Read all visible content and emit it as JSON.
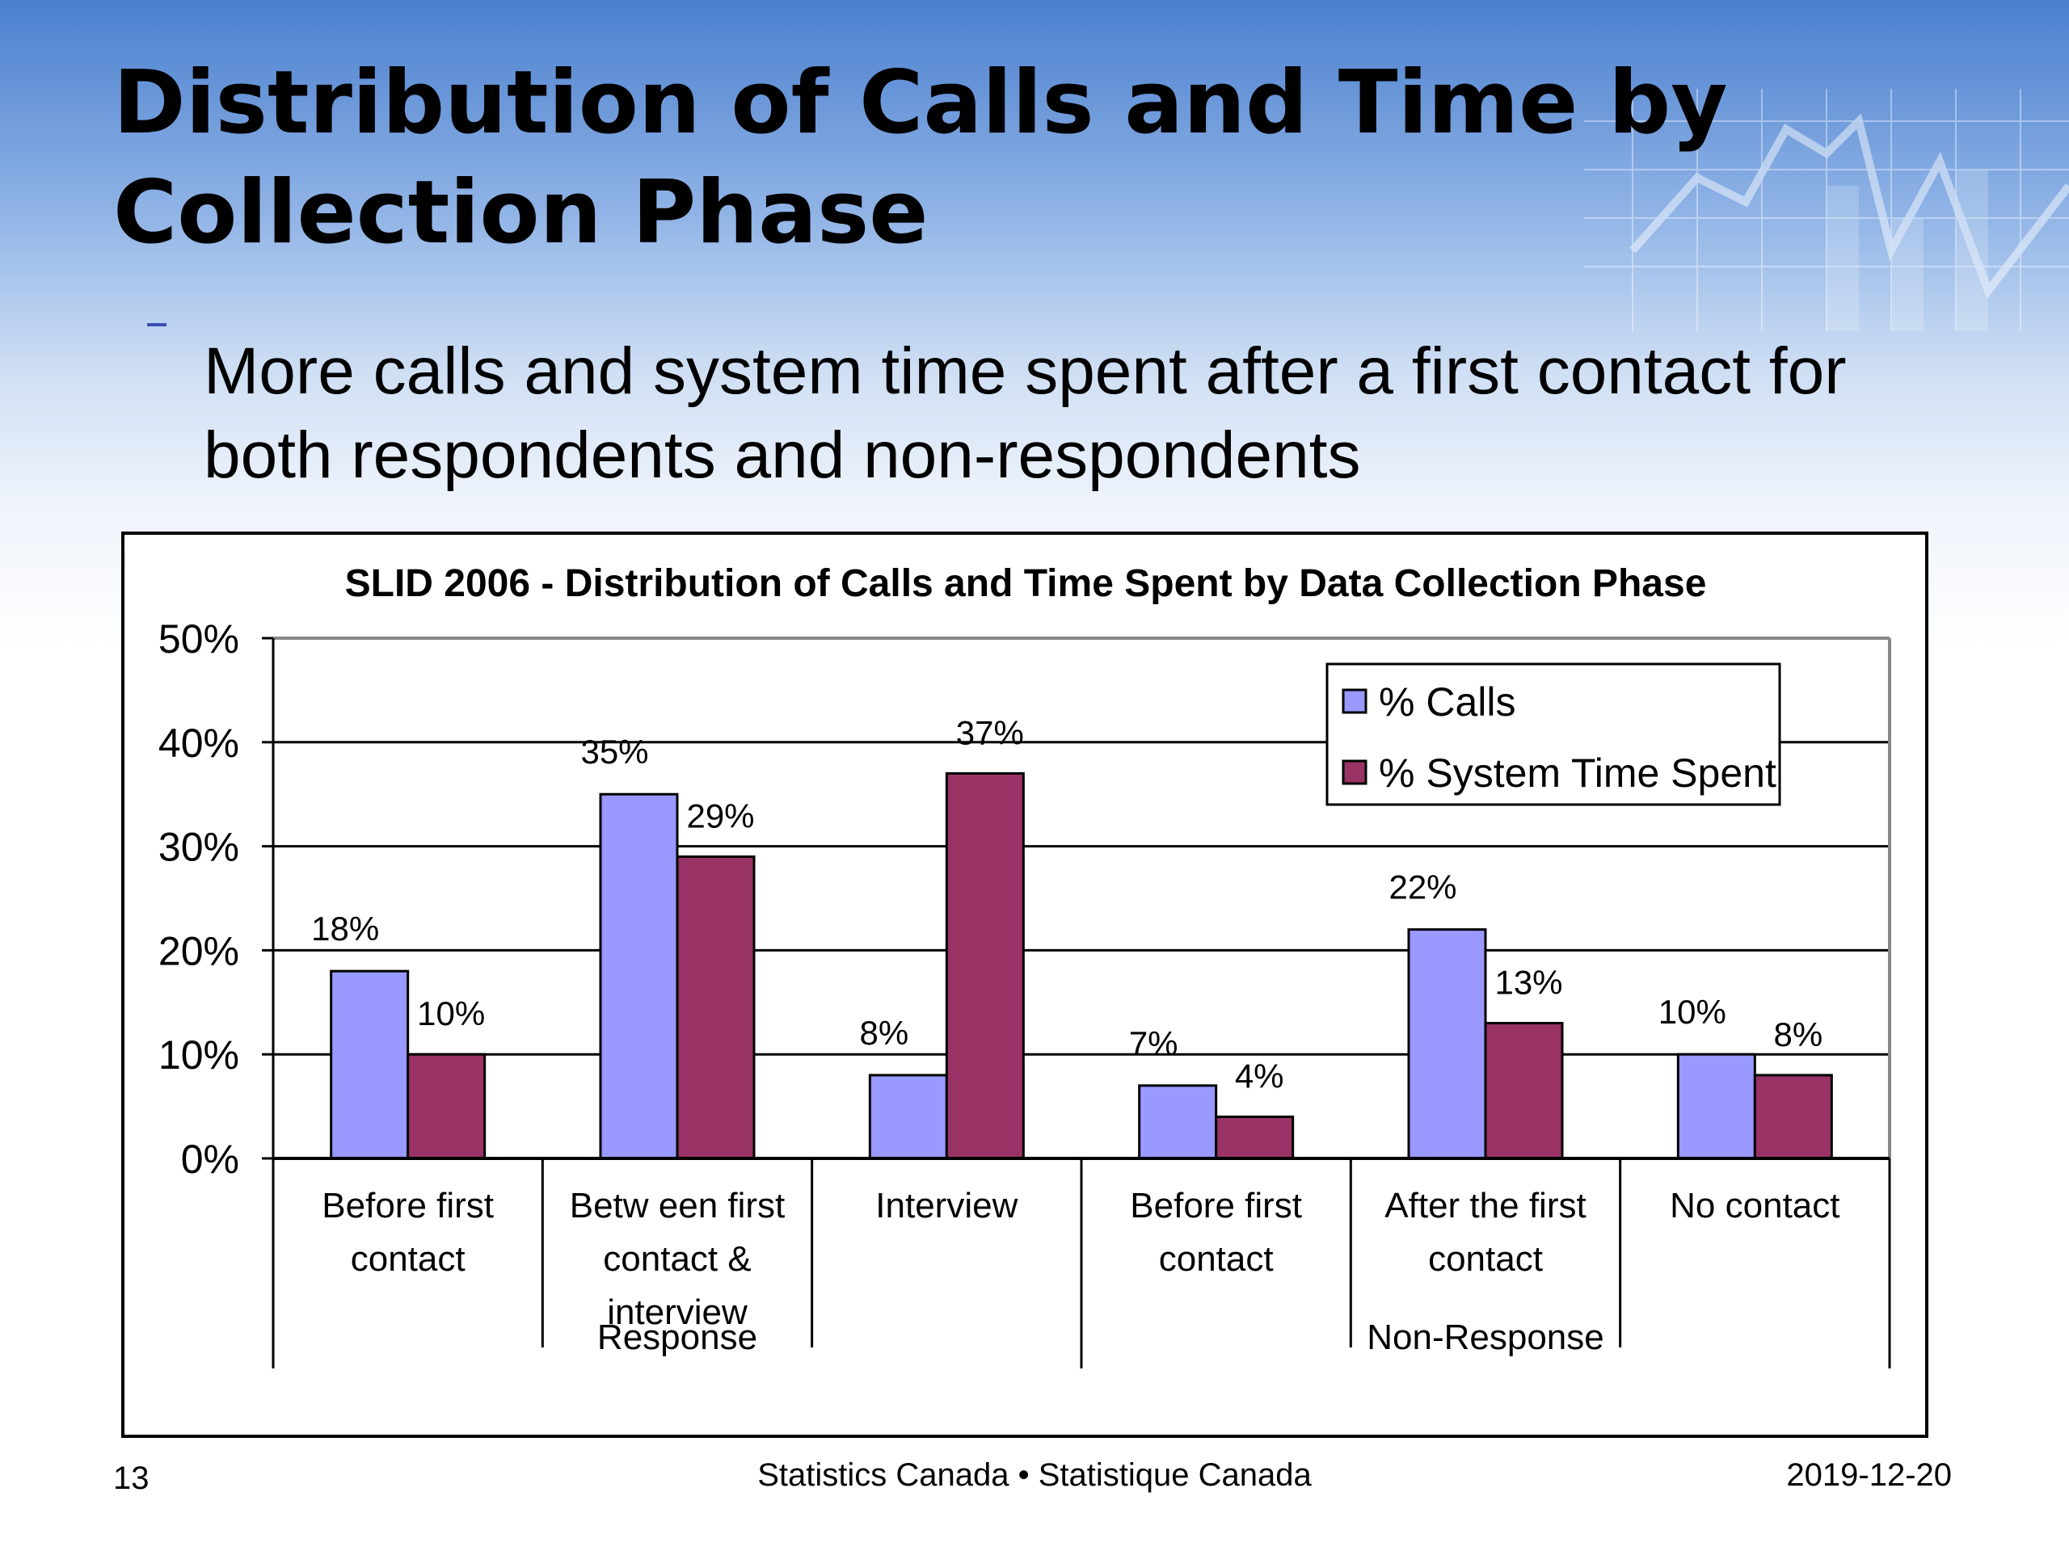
{
  "slide": {
    "title": "Distribution of Calls and Time by Collection Phase",
    "bullet": "More calls and system time spent after a first contact for both respondents and non-respondents"
  },
  "footer": {
    "page_number": "13",
    "center": "Statistics Canada • Statistique Canada",
    "date": "2019-12-20"
  },
  "colors": {
    "calls": "#9999ff",
    "time": "#993366"
  },
  "chart_data": {
    "type": "bar",
    "title": "SLID 2006 - Distribution of Calls and Time Spent by Data Collection Phase",
    "xlabel": "",
    "ylabel": "",
    "ylim": [
      0,
      50
    ],
    "yticks": [
      "0%",
      "10%",
      "20%",
      "30%",
      "40%",
      "50%"
    ],
    "grid": true,
    "legend_position": "top-right",
    "categories": [
      [
        "Before first",
        "contact"
      ],
      [
        "Betw een first",
        "contact &",
        "interview"
      ],
      [
        "Interview"
      ],
      [
        "Before first",
        "contact"
      ],
      [
        "After the first",
        "contact"
      ],
      [
        "No contact"
      ]
    ],
    "groups": [
      {
        "label": "Response",
        "span": 3
      },
      {
        "label": "Non-Response",
        "span": 3
      }
    ],
    "series": [
      {
        "name": "% Calls",
        "values": [
          18,
          35,
          8,
          7,
          22,
          10
        ],
        "labels": [
          "18%",
          "35%",
          "8%",
          "7%",
          "22%",
          "10%"
        ]
      },
      {
        "name": "% System Time Spent",
        "values": [
          10,
          29,
          37,
          4,
          13,
          8
        ],
        "labels": [
          "10%",
          "29%",
          "37%",
          "4%",
          "13%",
          "8%"
        ]
      }
    ]
  }
}
